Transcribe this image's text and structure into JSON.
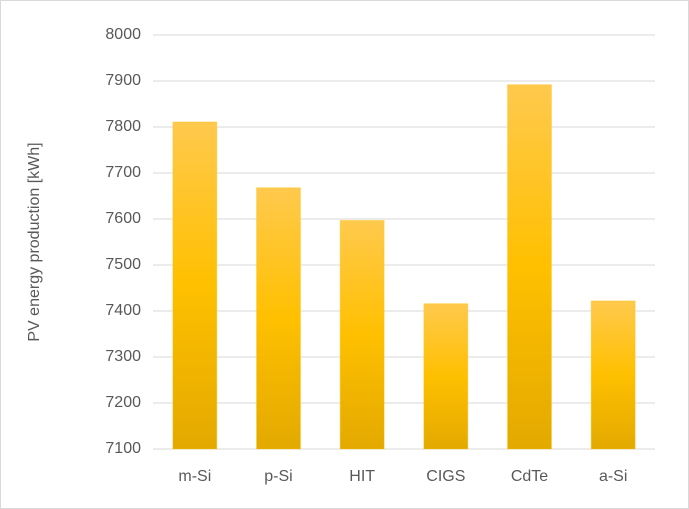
{
  "chart_data": {
    "type": "bar",
    "y_label": "PV energy production [kWh]",
    "categories": [
      "m-Si",
      "p-Si",
      "HIT",
      "CIGS",
      "CdTe",
      "a-Si"
    ],
    "values": [
      7811,
      7668,
      7597,
      7416,
      7892,
      7422
    ],
    "color": "#ffc000",
    "ylim": [
      7100,
      8000
    ],
    "yticks": [
      7100,
      7200,
      7300,
      7400,
      7500,
      7600,
      7700,
      7800,
      7900,
      8000
    ],
    "grid": true
  }
}
